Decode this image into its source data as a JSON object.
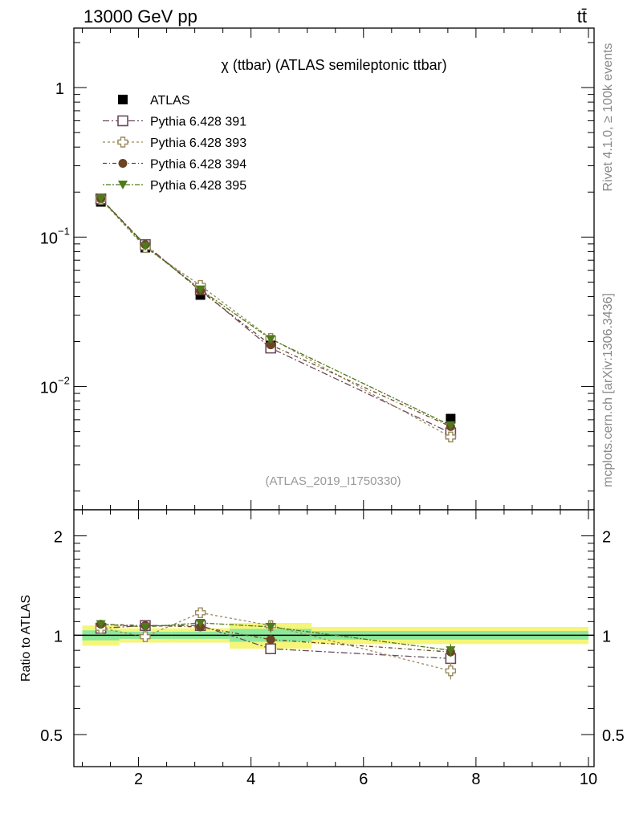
{
  "header": {
    "energy_label": "13000 GeV pp",
    "process_label": "tt̄"
  },
  "side_labels": {
    "rivet": "Rivet 4.1.0, ≥ 100k events",
    "mcplots": "mcplots.cern.ch [arXiv:1306.3436]"
  },
  "chart_data": [
    {
      "type": "line",
      "title": "χ (ttbar) (ATLAS semileptonic ttbar)",
      "watermark": "(ATLAS_2019_I1750330)",
      "yscale": "log",
      "xlim": [
        0.85,
        10.1
      ],
      "ylim": [
        0.0015,
        2.5
      ],
      "y_ticks": [
        {
          "value": 1,
          "label": "1"
        },
        {
          "value": 0.1,
          "label": "10",
          "exp": "−1"
        },
        {
          "value": 0.01,
          "label": "10",
          "exp": "−2"
        }
      ],
      "x": [
        1.33,
        2.12,
        3.1,
        4.35,
        7.55
      ],
      "data": {
        "name": "ATLAS",
        "values": [
          0.172,
          0.085,
          0.041,
          0.0195,
          0.0061
        ],
        "bin_edges": [
          1.0,
          1.66,
          2.58,
          3.62,
          5.08,
          10.0
        ],
        "color": "#000000"
      },
      "series": [
        {
          "name": "Pythia 6.428 391",
          "values": [
            0.18,
            0.089,
            0.0445,
            0.0181,
            0.0049
          ],
          "errors": [
            0.004,
            0.002,
            0.001,
            0.0005,
            0.0002
          ],
          "color": "#6b4a5e",
          "marker": "open-square",
          "dash": "8,3,2,3"
        },
        {
          "name": "Pythia 6.428 393",
          "values": [
            0.179,
            0.085,
            0.0475,
            0.021,
            0.0046
          ],
          "errors": [
            0.004,
            0.002,
            0.001,
            0.0006,
            0.0002
          ],
          "color": "#9a8a5e",
          "marker": "open-cross",
          "dash": "3,3"
        },
        {
          "name": "Pythia 6.428 394",
          "values": [
            0.181,
            0.089,
            0.0437,
            0.019,
            0.0054
          ],
          "errors": [
            0.004,
            0.002,
            0.001,
            0.0005,
            0.0002
          ],
          "color": "#6b4423",
          "marker": "circle",
          "dash": "5,3,1,3"
        },
        {
          "name": "Pythia 6.428 395",
          "values": [
            0.181,
            0.087,
            0.0446,
            0.0208,
            0.0055
          ],
          "errors": [
            0.004,
            0.002,
            0.001,
            0.0006,
            0.0002
          ],
          "color": "#4e7a1a",
          "marker": "triangle-down",
          "dash": "2,2,6,2"
        }
      ]
    },
    {
      "type": "line",
      "ylabel": "Ratio to ATLAS",
      "yscale": "log",
      "xlim": [
        0.85,
        10.1
      ],
      "ylim": [
        0.4,
        2.4
      ],
      "x_ticks": [
        2,
        4,
        6,
        8,
        10
      ],
      "y_ticks_left": [
        {
          "value": 0.5,
          "label": "0.5"
        },
        {
          "value": 1,
          "label": "1"
        },
        {
          "value": 2,
          "label": "2"
        }
      ],
      "y_ticks_right": [
        {
          "value": 0.5,
          "label": "0.5"
        },
        {
          "value": 1,
          "label": "1"
        },
        {
          "value": 2,
          "label": "2"
        }
      ],
      "x": [
        1.33,
        2.12,
        3.1,
        4.35,
        7.55
      ],
      "bands": {
        "bin_edges": [
          1.0,
          1.66,
          2.58,
          3.62,
          5.08,
          10.0
        ],
        "inner": [
          0.035,
          0.025,
          0.025,
          0.045,
          0.03
        ],
        "outer": [
          0.07,
          0.05,
          0.05,
          0.09,
          0.06
        ],
        "inner_color": "#8ce89a",
        "outer_color": "#f5f57a"
      },
      "series": [
        {
          "name": "Pythia 6.428 391",
          "values": [
            1.05,
            1.07,
            1.07,
            0.91,
            0.85
          ],
          "errors": [
            0.02,
            0.02,
            0.02,
            0.02,
            0.02
          ],
          "color": "#6b4a5e",
          "marker": "open-square",
          "dash": "8,3,2,3"
        },
        {
          "name": "Pythia 6.428 393",
          "values": [
            1.05,
            0.99,
            1.17,
            1.07,
            0.78
          ],
          "errors": [
            0.02,
            0.02,
            0.03,
            0.03,
            0.045
          ],
          "color": "#9a8a5e",
          "marker": "open-cross",
          "dash": "3,3"
        },
        {
          "name": "Pythia 6.428 394",
          "values": [
            1.08,
            1.07,
            1.06,
            0.97,
            0.89
          ],
          "errors": [
            0.02,
            0.02,
            0.02,
            0.03,
            0.02
          ],
          "color": "#6b4423",
          "marker": "circle",
          "dash": "5,3,1,3"
        },
        {
          "name": "Pythia 6.428 395",
          "values": [
            1.08,
            1.06,
            1.09,
            1.06,
            0.9
          ],
          "errors": [
            0.02,
            0.02,
            0.02,
            0.04,
            0.04
          ],
          "color": "#4e7a1a",
          "marker": "triangle-down",
          "dash": "2,2,6,2"
        }
      ]
    }
  ]
}
